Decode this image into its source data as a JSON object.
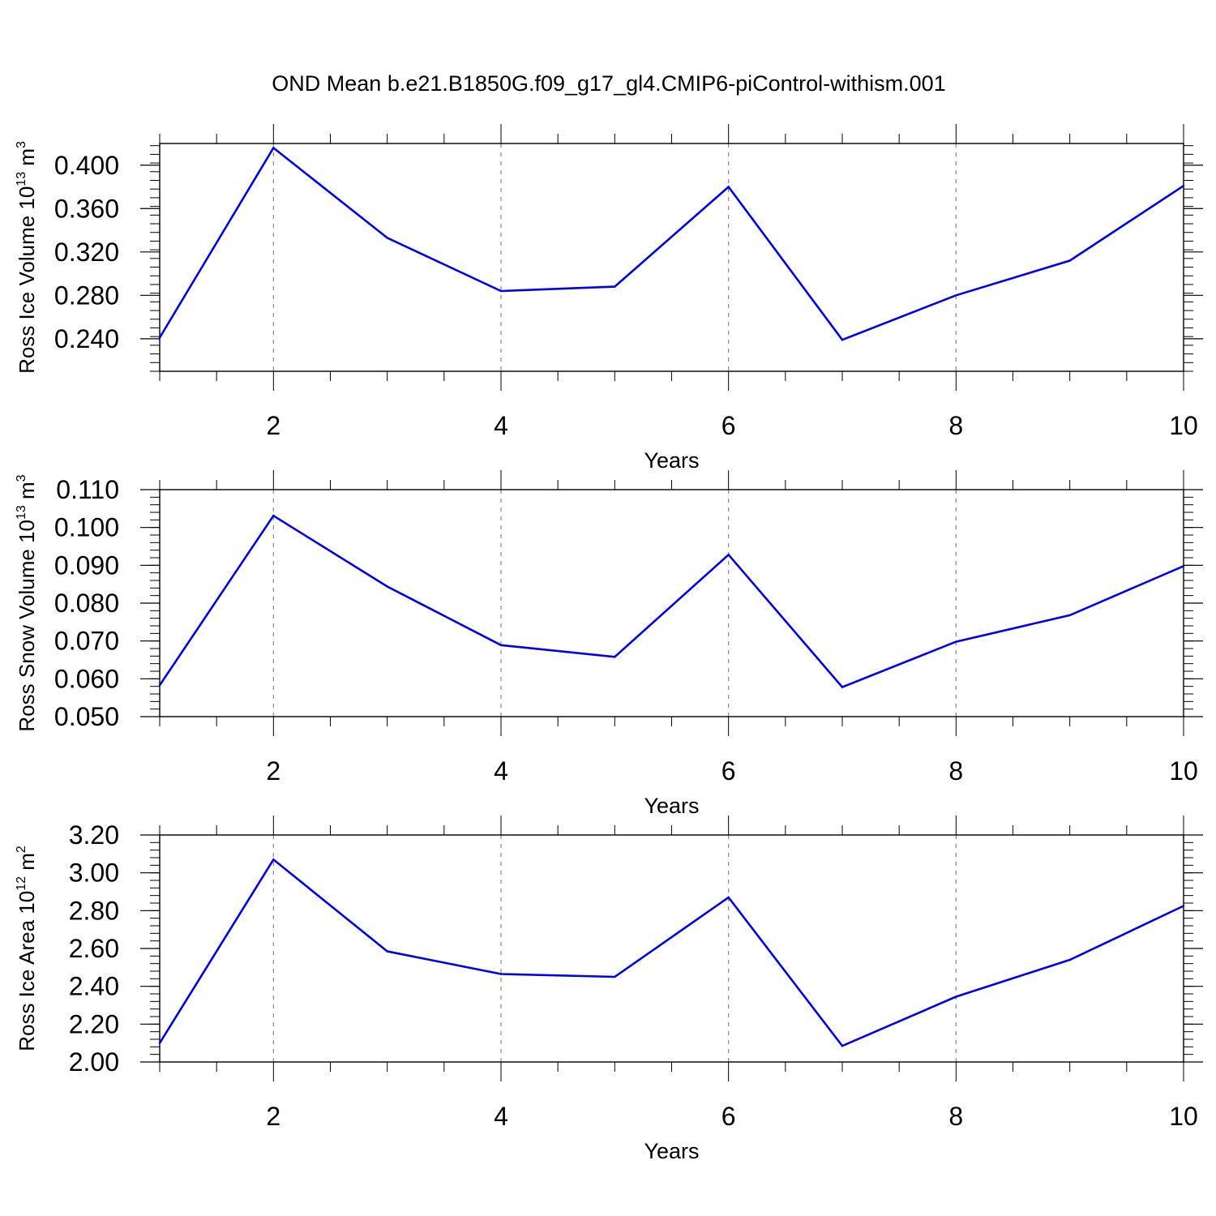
{
  "title": "OND Mean b.e21.B1850G.f09_g17_gl4.CMIP6-piControl-withism.001",
  "chart_data": [
    {
      "type": "line",
      "ylabel_prefix": "Ross Ice Volume 10",
      "ylabel_exp": "13",
      "ylabel_unit": " m",
      "ylabel_unit_exp": "3",
      "xlabel": "Years",
      "xlim": [
        1,
        10
      ],
      "ylim": [
        0.21,
        0.42
      ],
      "yticks": [
        "0.240",
        "0.280",
        "0.320",
        "0.360",
        "0.400"
      ],
      "xticks": [
        "2",
        "4",
        "6",
        "8",
        "10"
      ],
      "x": [
        1,
        2,
        3,
        4,
        5,
        6,
        7,
        8,
        9,
        10
      ],
      "values": [
        0.241,
        0.416,
        0.333,
        0.284,
        0.288,
        0.38,
        0.239,
        0.28,
        0.312,
        0.381
      ],
      "line_color": "#0000ee"
    },
    {
      "type": "line",
      "ylabel_prefix": "Ross Snow Volume 10",
      "ylabel_exp": "13",
      "ylabel_unit": " m",
      "ylabel_unit_exp": "3",
      "xlabel": "Years",
      "xlim": [
        1,
        10
      ],
      "ylim": [
        0.05,
        0.11
      ],
      "yticks": [
        "0.050",
        "0.060",
        "0.070",
        "0.080",
        "0.090",
        "0.100",
        "0.110"
      ],
      "xticks": [
        "2",
        "4",
        "6",
        "8",
        "10"
      ],
      "x": [
        1,
        2,
        3,
        4,
        5,
        6,
        7,
        8,
        9,
        10
      ],
      "values": [
        0.0583,
        0.1031,
        0.0844,
        0.0689,
        0.0658,
        0.0928,
        0.0578,
        0.0698,
        0.0768,
        0.0898
      ],
      "line_color": "#0000ee"
    },
    {
      "type": "line",
      "ylabel_prefix": "Ross Ice Area 10",
      "ylabel_exp": "12",
      "ylabel_unit": " m",
      "ylabel_unit_exp": "2",
      "xlabel": "Years",
      "xlim": [
        1,
        10
      ],
      "ylim": [
        2.0,
        3.2
      ],
      "yticks": [
        "2.00",
        "2.20",
        "2.40",
        "2.60",
        "2.80",
        "3.00",
        "3.20"
      ],
      "xticks": [
        "2",
        "4",
        "6",
        "8",
        "10"
      ],
      "x": [
        1,
        2,
        3,
        4,
        5,
        6,
        7,
        8,
        9,
        10
      ],
      "values": [
        2.1,
        3.07,
        2.585,
        2.465,
        2.45,
        2.87,
        2.085,
        2.345,
        2.54,
        2.825
      ],
      "line_color": "#0000ee"
    }
  ]
}
